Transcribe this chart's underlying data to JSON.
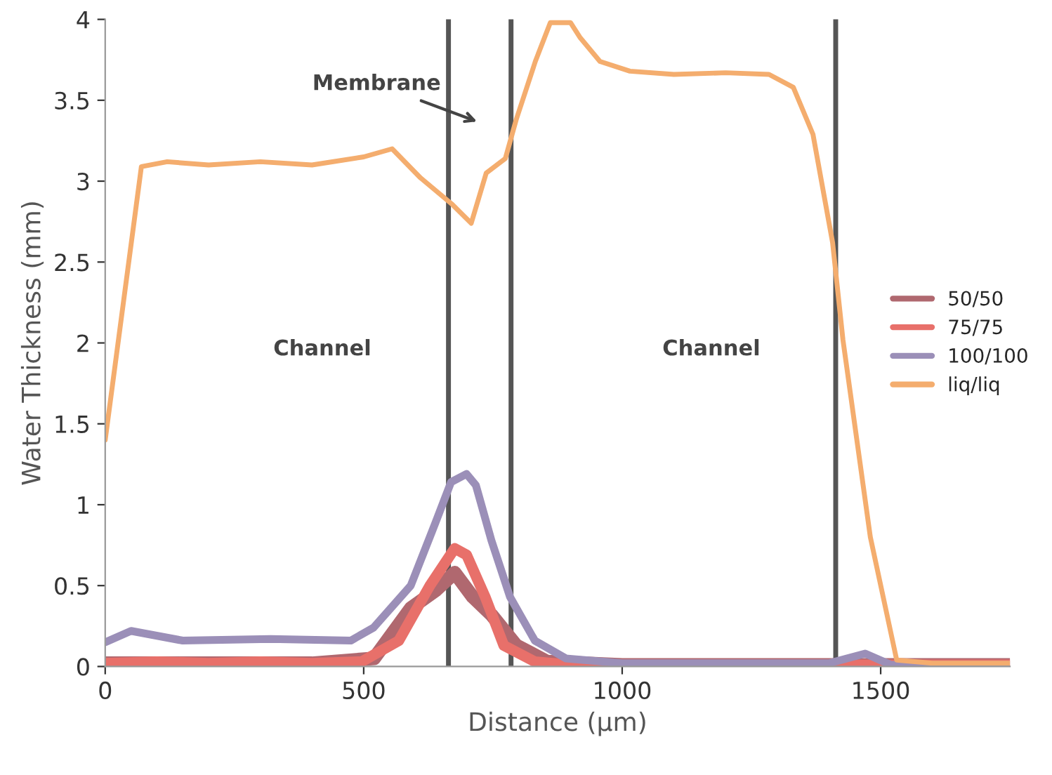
{
  "chart_data": {
    "type": "line",
    "xlabel": "Distance (μm)",
    "ylabel": "Water Thickness (mm)",
    "xlim": [
      0,
      1750
    ],
    "xticks": [
      0,
      500,
      1000,
      1500
    ],
    "ylim": [
      0,
      4
    ],
    "yticks": [
      0,
      0.5,
      1,
      1.5,
      2,
      2.5,
      3,
      3.5,
      4
    ],
    "grid": false,
    "legend": "center right",
    "marker": "none",
    "line_style": "solid",
    "series": [
      {
        "name": "50/50",
        "color": "#b0686f",
        "x": [
          0,
          200,
          400,
          520,
          591,
          639,
          676,
          711,
          747,
          795,
          855,
          1000,
          1250,
          1500,
          1750
        ],
        "values": [
          0.02,
          0.02,
          0.02,
          0.05,
          0.36,
          0.47,
          0.58,
          0.43,
          0.32,
          0.13,
          0.03,
          0.01,
          0.01,
          0.01,
          0.01
        ]
      },
      {
        "name": "75/75",
        "color": "#e8706a",
        "x": [
          0,
          100,
          200,
          300,
          400,
          496,
          568,
          628,
          676,
          699,
          735,
          771,
          831,
          900,
          1000,
          1250,
          1500,
          1750
        ],
        "values": [
          0.02,
          0.03,
          0.02,
          0.03,
          0.02,
          0.03,
          0.16,
          0.5,
          0.73,
          0.69,
          0.43,
          0.13,
          0.03,
          0.01,
          0.01,
          0.01,
          0.01,
          0.01
        ]
      },
      {
        "name": "100/100",
        "color": "#9b8fb8",
        "x": [
          0,
          50,
          150,
          320,
          475,
          519,
          591,
          639,
          669,
          699,
          717,
          747,
          783,
          831,
          891,
          1000,
          1200,
          1400,
          1470,
          1520,
          1600,
          1750
        ],
        "values": [
          0.15,
          0.22,
          0.16,
          0.17,
          0.16,
          0.24,
          0.5,
          0.89,
          1.14,
          1.19,
          1.12,
          0.78,
          0.43,
          0.16,
          0.05,
          0.02,
          0.02,
          0.02,
          0.08,
          0.01,
          0.01,
          0.01
        ]
      },
      {
        "name": "liq/liq",
        "color": "#f4ad6e",
        "x": [
          0,
          70,
          120,
          200,
          300,
          400,
          500,
          555,
          610,
          670,
          708,
          737,
          774,
          795,
          832,
          861,
          900,
          918,
          957,
          1015,
          1100,
          1200,
          1284,
          1331,
          1369,
          1407,
          1427,
          1480,
          1531,
          1600,
          1750
        ],
        "values": [
          1.4,
          3.09,
          3.12,
          3.1,
          3.12,
          3.1,
          3.15,
          3.2,
          3.02,
          2.86,
          2.74,
          3.05,
          3.14,
          3.38,
          3.74,
          3.98,
          3.98,
          3.89,
          3.74,
          3.68,
          3.66,
          3.67,
          3.66,
          3.58,
          3.29,
          2.62,
          2.02,
          0.8,
          0.04,
          0.02,
          0.02
        ]
      }
    ],
    "ref_lines": [
      {
        "axis": "x",
        "value": 664,
        "color": "#555555"
      },
      {
        "axis": "x",
        "value": 785,
        "color": "#555555"
      },
      {
        "axis": "x",
        "value": 1413,
        "color": "#555555"
      }
    ],
    "annotations": [
      "Membrane",
      "Channel",
      "Channel"
    ]
  }
}
